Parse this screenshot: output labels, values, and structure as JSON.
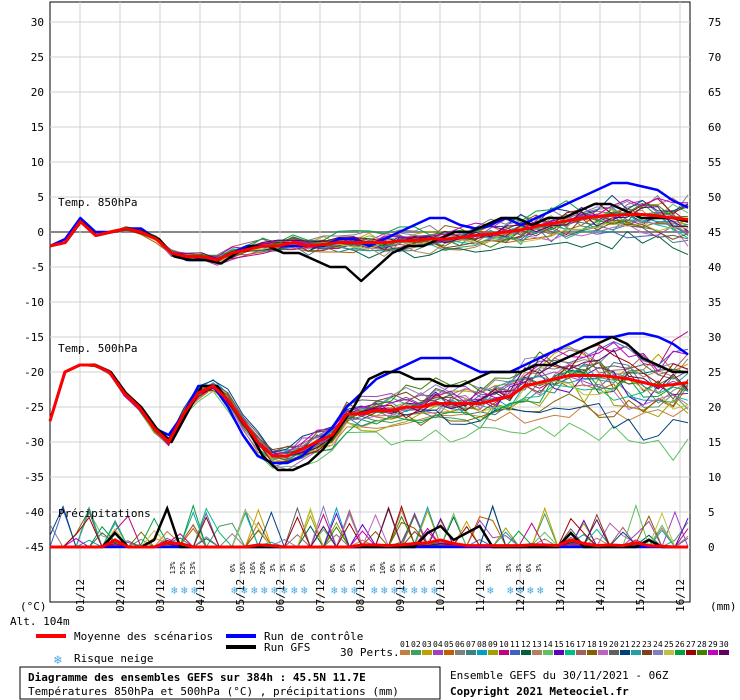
{
  "chart_data": {
    "type": "line",
    "title": "Diagramme des ensembles GEFS sur 384h : 45.5N 11.7E",
    "subtitle": "Températures 850hPa et 500hPa (°C) , précipitations (mm)",
    "run_info": "Ensemble GEFS du 30/11/2021 - 06Z",
    "copyright": "Copyright 2021 Meteociel.fr",
    "altitude": "Alt. 104m",
    "left_unit": "(°C)",
    "right_unit": "(mm)",
    "left_axis_ticks": [
      30,
      25,
      20,
      15,
      10,
      5,
      0,
      -5,
      -10,
      -15,
      -20,
      -25,
      -30,
      -35,
      -40,
      -45
    ],
    "right_axis_ticks": [
      75,
      70,
      65,
      60,
      55,
      50,
      45,
      40,
      35,
      30,
      25,
      20,
      15,
      10,
      5,
      0
    ],
    "x_labels": [
      "01/12",
      "02/12",
      "03/12",
      "04/12",
      "05/12",
      "06/12",
      "07/12",
      "08/12",
      "09/12",
      "10/12",
      "11/12",
      "12/12",
      "13/12",
      "14/12",
      "15/12",
      "16/12"
    ],
    "section_labels": {
      "t850": "Temp. 850hPa",
      "t500": "Temp. 500hPa",
      "precip": "Précipitations"
    },
    "series": [
      {
        "name": "Moyenne des scénarios",
        "color": "#ff0000",
        "t850": [
          -2,
          -1.5,
          1.5,
          -0.5,
          0,
          0.5,
          0,
          -1,
          -3,
          -3.5,
          -3.5,
          -4,
          -3,
          -2.5,
          -2,
          -2,
          -1.5,
          -2,
          -1.8,
          -1.5,
          -1.5,
          -1.5,
          -1.5,
          -1.3,
          -1.2,
          -1,
          -1,
          -0.8,
          -0.5,
          -0.3,
          0,
          0.3,
          0.8,
          1.2,
          1.6,
          2,
          2.2,
          2.4,
          2.5,
          2.5,
          2.3,
          2,
          1.8
        ],
        "t500": [
          -27,
          -20,
          -19,
          -19,
          -20,
          -23,
          -25,
          -28,
          -30,
          -26,
          -23,
          -22,
          -24,
          -27,
          -30,
          -32,
          -32,
          -31,
          -30,
          -29,
          -26,
          -26,
          -25.5,
          -25.5,
          -25,
          -25,
          -24.5,
          -24.5,
          -24.5,
          -24.5,
          -24,
          -23.5,
          -22,
          -21.5,
          -21,
          -20.5,
          -20.5,
          -20.5,
          -20.7,
          -21,
          -21.5,
          -22,
          -21.8,
          -21.5
        ],
        "precip": [
          0,
          0,
          0,
          0,
          0,
          1,
          0,
          0,
          0,
          0.6,
          0.5,
          0,
          0,
          0,
          0,
          0,
          0.3,
          0.2,
          0,
          0,
          0,
          0,
          0,
          0,
          0.3,
          0.3,
          0.2,
          0.3,
          0.5,
          0.6,
          1,
          0.5,
          0.2,
          0.2,
          0.2,
          0.2,
          0.2,
          0.3,
          0.3,
          0.2,
          1,
          0.5,
          0.2,
          0.3,
          0.2,
          0.6,
          0.2,
          0.1,
          0,
          0
        ]
      },
      {
        "name": "Run de contrôle",
        "color": "#0000ff",
        "t850": [
          -2,
          -1,
          2,
          0,
          0,
          0.5,
          0.5,
          -1,
          -3,
          -4,
          -4,
          -4,
          -3,
          -2,
          -2,
          -2,
          -2,
          -2,
          -2,
          -1,
          -1,
          -2,
          -1,
          0,
          1,
          2,
          2,
          1,
          0.5,
          1,
          2,
          1,
          2,
          3,
          4,
          5,
          6,
          7,
          7,
          6.5,
          6,
          4.5,
          3.5
        ],
        "t500": [
          -27,
          -20,
          -19,
          -19,
          -20,
          -23,
          -25,
          -28,
          -29,
          -26,
          -22,
          -22,
          -25,
          -29,
          -32,
          -33,
          -33,
          -32,
          -30,
          -28,
          -25,
          -23,
          -21,
          -20,
          -19,
          -18,
          -18,
          -18,
          -19,
          -20,
          -20,
          -20,
          -19,
          -18,
          -17,
          -16,
          -15,
          -15,
          -15,
          -14.5,
          -14.5,
          -15,
          -16,
          -17.5
        ],
        "precip": [
          0,
          0,
          0,
          0,
          0,
          0,
          0,
          0,
          0,
          0,
          0,
          0,
          0,
          0,
          0,
          0,
          0,
          0,
          0,
          0,
          0,
          0,
          0,
          0,
          0,
          0,
          0,
          0,
          0,
          0,
          0,
          0,
          0,
          0,
          0,
          0,
          0,
          0,
          0,
          0,
          0,
          0,
          0,
          0,
          0,
          0,
          0,
          0,
          0,
          0
        ]
      },
      {
        "name": "Run GFS",
        "color": "#000000",
        "t850": [
          -2,
          -1.5,
          1.5,
          -0.5,
          0,
          0.5,
          0,
          -1,
          -3.5,
          -4,
          -4,
          -4.5,
          -3,
          -2,
          -2,
          -3,
          -3,
          -4,
          -5,
          -5,
          -7,
          -5,
          -3,
          -2,
          -2,
          -1,
          0,
          0,
          1,
          2,
          2,
          1,
          2,
          2,
          3,
          4,
          4,
          3,
          2,
          2,
          2,
          1.5
        ],
        "t500": [
          -27,
          -20,
          -19,
          -19,
          -20,
          -23,
          -25,
          -28,
          -30,
          -26,
          -22,
          -22,
          -25,
          -28,
          -32,
          -34,
          -34,
          -33,
          -31,
          -28,
          -25,
          -21,
          -20,
          -20,
          -21,
          -21,
          -22,
          -22,
          -21,
          -20,
          -20,
          -20,
          -19,
          -19,
          -18,
          -17,
          -16,
          -15,
          -16,
          -18,
          -19,
          -20,
          -20
        ],
        "precip": [
          0,
          0,
          0,
          0,
          0,
          2,
          0,
          0,
          1,
          5.5,
          0,
          0,
          0,
          0,
          0,
          0,
          0,
          0,
          0,
          0,
          0,
          0,
          0,
          0,
          0,
          0,
          0,
          0,
          0,
          2,
          3,
          1,
          2,
          3,
          0,
          0,
          0,
          0,
          0,
          0,
          2,
          0,
          0,
          0,
          0,
          0,
          1,
          0,
          0,
          0
        ]
      }
    ],
    "ensemble_members": [
      "01",
      "02",
      "03",
      "04",
      "05",
      "06",
      "07",
      "08",
      "09",
      "10",
      "11",
      "12",
      "13",
      "14",
      "15",
      "16",
      "17",
      "18",
      "19",
      "20",
      "21",
      "22",
      "23",
      "24",
      "25",
      "26",
      "27",
      "28",
      "29",
      "30"
    ],
    "ensemble_colors": [
      "#c08040",
      "#40a060",
      "#c0a000",
      "#a040c0",
      "#c06000",
      "#808080",
      "#408080",
      "#00a0c0",
      "#a0a000",
      "#c00080",
      "#4060c0",
      "#006040",
      "#b08060",
      "#60c060",
      "#6000c0",
      "#00c080",
      "#a06060",
      "#806000",
      "#c060c0",
      "#606060",
      "#004080",
      "#20a0a0",
      "#804020",
      "#8080c0",
      "#c0c040",
      "#00a040",
      "#a00000",
      "#408000",
      "#c000c0",
      "#600060"
    ],
    "snow_risk": [
      {
        "day_pos": 3.05,
        "values": [
          "13%",
          "52%",
          "53%"
        ]
      },
      {
        "day_pos": 4.55,
        "values": [
          "6%",
          "16%",
          "16%",
          "20%",
          "3%",
          "3%"
        ]
      },
      {
        "day_pos": 6.05,
        "values": [
          "3%",
          "6%"
        ]
      },
      {
        "day_pos": 7.05,
        "values": [
          "6%",
          "6%",
          "3%"
        ]
      },
      {
        "day_pos": 8.05,
        "values": [
          "3%",
          "10%",
          "6%",
          "3%",
          "3%",
          "3%",
          "3%"
        ]
      },
      {
        "day_pos": 10.95,
        "values": [
          "3%"
        ]
      },
      {
        "day_pos": 11.45,
        "values": [
          "3%",
          "3%",
          "6%",
          "3%"
        ]
      }
    ],
    "legend": {
      "mean": "Moyenne des scénarios",
      "control": "Run de contrôle",
      "gfs": "Run GFS",
      "snow": "Risque neige",
      "perts": "30 Perts."
    }
  }
}
